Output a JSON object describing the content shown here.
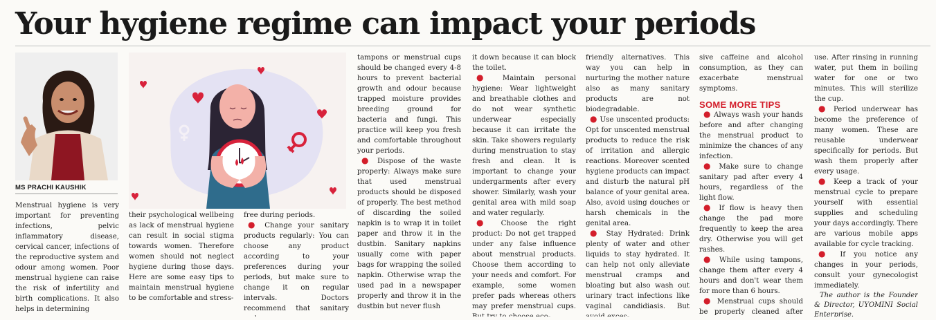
{
  "headline": "Your hygiene regime can impact your periods",
  "byline": "MS PRACHI KAUSHIK",
  "colors": {
    "bullet": "#d31e2b",
    "illustration_bg": "#f6f1ef",
    "illustration_accent": "#d8223b"
  },
  "columns": {
    "c1": "Menstrual hygiene is very important for preventing infections, pelvic inflammatory disease, cervical cancer, infections of the reproductive system and odour among women. Poor menstrual hygiene can raise the risk of infertility and birth complications. It also helps in determining",
    "c2": "their psychological wellbeing as lack of menstrual hygiene can result in social stigma towards women. Therefore women should not neglect hygiene during those days. Here are some easy tips to maintain menstrual hygiene to be comfortable and stress-",
    "c3a": "free during periods.",
    "c3b": "Change your sanitary products regularly: You can choose any product according to your preferences during your periods, but make sure to change it on regular intervals. Doctors recommend that sanitary pads,",
    "c4a": "tampons or menstrual cups should be changed every 4-8 hours to prevent bacterial growth and odour because trapped moisture provides breeding ground for bacteria and fungi. This practice will keep you fresh and comfortable throughout your periods.",
    "c4b": "Dispose of the waste properly: Always make sure that used menstrual products should be disposed of properly. The best method of discarding the soiled napkin is to wrap it in toilet paper and throw it in the dustbin. Sanitary napkins usually come with paper bags for wrapping the soiled napkin. Otherwise wrap the used pad in a newspaper properly and throw it in the dustbin but never flush",
    "c5a": "it down because it can block the toilet.",
    "c5b": "Maintain personal hygiene: Wear lightweight and breathable clothes and do not wear synthetic underwear especially because it can irritate the skin. Take showers regularly during menstruation to stay fresh and clean. It is important to change your undergarments after every shower. Similarly, wash your genital area with mild soap and water regularly.",
    "c5c": "Choose the right product: Do not get trapped under any false influence about menstrual products. Choose them according to your needs and comfort. For example, some women prefer pads whereas others may prefer menstrual cups. But try to choose eco-",
    "c6a": "friendly alternatives. This way you can help in nurturing the mother nature also as many sanitary products are not biodegradable.",
    "c6b": "Use unscented products: Opt for unscented menstrual products to reduce the risk of irritation and allergic reactions. Moreover scented hygiene products can impact and disturb the natural pH balance of your genital area. Also, avoid using douches or harsh chemicals in the genital area.",
    "c6c": "Stay Hydrated: Drink plenty of water and other liquids to stay hydrated. It can help not only alleviate menstrual cramps and bloating but also wash out urinary tract infections like vaginal candidiasis. But avoid exces-",
    "c7a": "sive caffeine and alcohol consumption, as they can exacerbate menstrual symptoms.",
    "c7_heading": "SOME MORE TIPS",
    "c7b": "Always wash your hands before and after changing the menstrual product to minimize the chances of any infection.",
    "c7c": "Make sure to change sanitary pad after every 4 hours, regardless of the light flow.",
    "c7d": "If flow is heavy then change the pad more frequently to keep the area dry. Otherwise you will get rashes.",
    "c7e": "While using tampons, change them after every 4 hours and don't wear them for more than 6 hours.",
    "c7f": "Menstrual cups should be properly cleaned after every",
    "c8a": "use. After rinsing in running water, put them in boiling water for one or two minutes. This will sterilize the cup.",
    "c8b": "Period underwear has become the preference of many women. These are reusable underwear specifically for periods. But wash them properly after every usage.",
    "c8c": "Keep a track of your menstrual cycle to prepare yourself with essential supplies and scheduling your days accordingly. There are various mobile apps available for cycle tracking.",
    "c8d": "If you notice any changes in your periods, consult your gynecologist immediately.",
    "credit": "The author is the Founder & Director, UYOMINI Social Enterprise."
  }
}
